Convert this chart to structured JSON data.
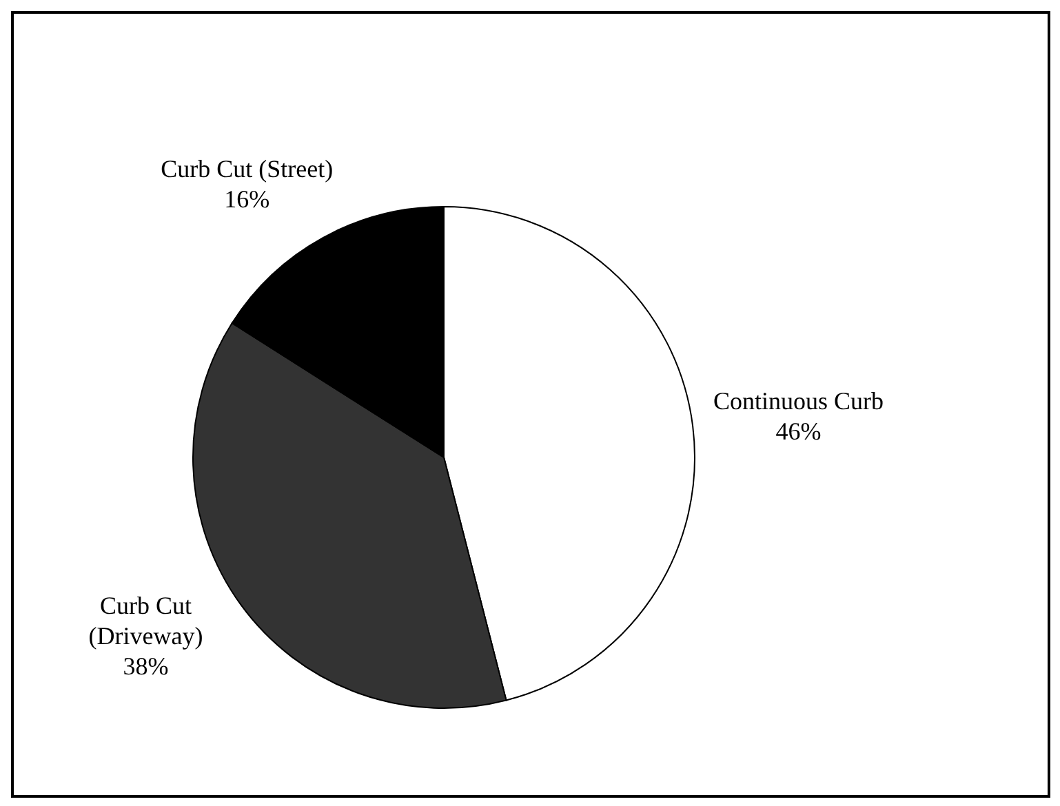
{
  "chart_data": {
    "type": "pie",
    "categories": [
      "Continuous Curb",
      "Curb Cut (Driveway)",
      "Curb Cut (Street)"
    ],
    "values": [
      46,
      38,
      16
    ],
    "value_labels": [
      "46%",
      "38%",
      "16%"
    ],
    "colors": [
      "#ffffff",
      "#333333",
      "#000000"
    ]
  }
}
